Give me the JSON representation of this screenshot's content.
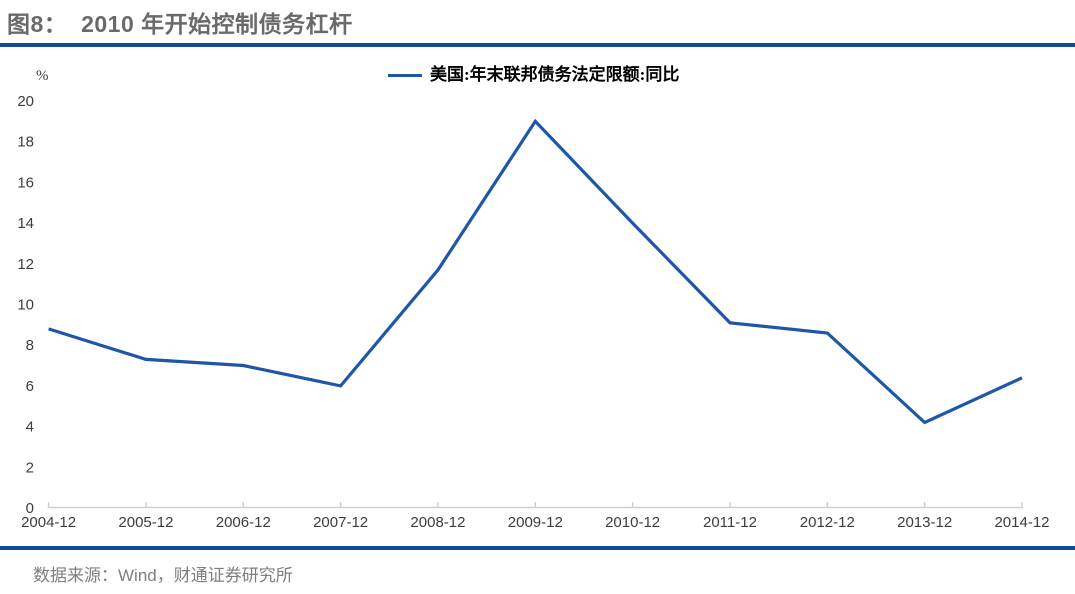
{
  "figure": {
    "title": "图8：  2010 年开始控制债务杠杆",
    "source": "数据来源：Wind，财通证券研究所",
    "colors": {
      "accent_rule": "#0d4e9b",
      "series_line": "#1f57a8",
      "axis_line": "#d1cfcf",
      "title_text": "#6a6a6a",
      "source_text": "#7f7f7f"
    }
  },
  "chart_data": {
    "type": "line",
    "title": "图8：  2010 年开始控制债务杠杆",
    "legend": [
      "美国:年末联邦债务法定限额:同比"
    ],
    "legend_position": "top-center",
    "categories": [
      "2004-12",
      "2005-12",
      "2006-12",
      "2007-12",
      "2008-12",
      "2009-12",
      "2010-12",
      "2011-12",
      "2012-12",
      "2013-12",
      "2014-12"
    ],
    "series": [
      {
        "name": "美国:年末联邦债务法定限额:同比",
        "values": [
          8.8,
          7.3,
          7.0,
          6.0,
          11.7,
          19.0,
          14.0,
          9.1,
          8.6,
          4.2,
          6.4
        ]
      }
    ],
    "xlabel": "",
    "ylabel": "%",
    "ylim": [
      0,
      20
    ],
    "yticks": [
      0,
      2,
      4,
      6,
      8,
      10,
      12,
      14,
      16,
      18,
      20
    ],
    "grid": false
  }
}
